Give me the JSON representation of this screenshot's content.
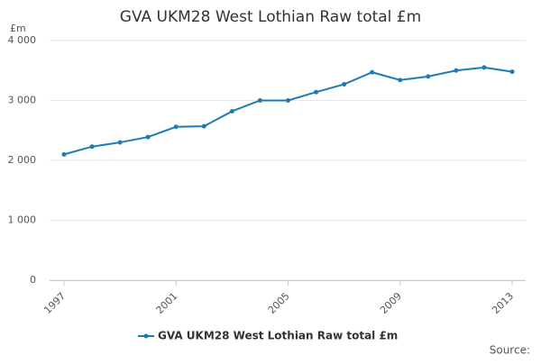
{
  "chart_data": {
    "type": "line",
    "title": "GVA UKM28 West Lothian Raw total £m",
    "y_unit": "£m",
    "source": "Source:",
    "x": [
      1997,
      1998,
      1999,
      2000,
      2001,
      2002,
      2003,
      2004,
      2005,
      2006,
      2007,
      2008,
      2009,
      2010,
      2011,
      2012,
      2013
    ],
    "series": [
      {
        "name": "GVA UKM28 West Lothian Raw total £m",
        "color": "#1f7bb6",
        "values": [
          2100,
          2230,
          2300,
          2390,
          2560,
          2570,
          2820,
          3000,
          3000,
          3140,
          3270,
          3470,
          3340,
          3400,
          3500,
          3550,
          3480
        ]
      }
    ],
    "xlim": [
      1997,
      2013
    ],
    "xticks": [
      1997,
      2001,
      2005,
      2009,
      2013
    ],
    "ylim": [
      0,
      4000
    ],
    "yticks": [
      0,
      {
        "value": 1000,
        "label": "1 000"
      },
      {
        "value": 2000,
        "label": "2 000"
      },
      {
        "value": 3000,
        "label": "3 000"
      },
      {
        "value": 4000,
        "label": "4 000"
      }
    ],
    "grid": true
  }
}
